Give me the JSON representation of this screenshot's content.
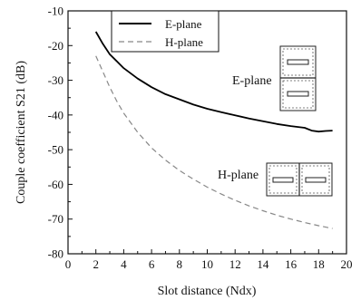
{
  "chart_data": {
    "type": "line",
    "xlabel": "Slot distance (Ndx)",
    "ylabel": "Couple coefficient S21 (dB)",
    "xlim": [
      0,
      20
    ],
    "ylim": [
      -80,
      -10
    ],
    "xticks": [
      0,
      2,
      4,
      6,
      8,
      10,
      12,
      14,
      16,
      18,
      20
    ],
    "yticks": [
      -10,
      -20,
      -30,
      -40,
      -50,
      -60,
      -70,
      -80
    ],
    "grid": false,
    "legend_position": "top-left",
    "series": [
      {
        "name": "E-plane",
        "style": "solid",
        "color": "#000000",
        "x": [
          2,
          2.5,
          3,
          3.5,
          4,
          5,
          6,
          7,
          8,
          9,
          10,
          11,
          12,
          13,
          14,
          15,
          16,
          17,
          17.5,
          18,
          18.5,
          19
        ],
        "y": [
          -16,
          -19.5,
          -22.5,
          -24.5,
          -26.5,
          -29.5,
          -32,
          -34,
          -35.5,
          -37,
          -38.2,
          -39.2,
          -40.1,
          -41,
          -41.8,
          -42.6,
          -43.2,
          -43.7,
          -44.5,
          -44.8,
          -44.6,
          -44.5
        ]
      },
      {
        "name": "H-plane",
        "style": "dashed",
        "color": "#888888",
        "x": [
          2,
          2.5,
          3,
          3.5,
          4,
          5,
          6,
          7,
          8,
          9,
          10,
          11,
          12,
          13,
          14,
          15,
          16,
          17,
          18,
          19
        ],
        "y": [
          -23,
          -27.5,
          -32,
          -36,
          -39.5,
          -45,
          -49.5,
          -53,
          -56,
          -58.5,
          -60.8,
          -62.8,
          -64.6,
          -66.2,
          -67.6,
          -68.9,
          -70,
          -71,
          -71.9,
          -72.7
        ]
      }
    ],
    "annotations": [
      {
        "text": "E-plane",
        "x": 13.3,
        "y": -34.5
      },
      {
        "text": "H-plane",
        "x": 12.1,
        "y": -57.5
      }
    ]
  }
}
